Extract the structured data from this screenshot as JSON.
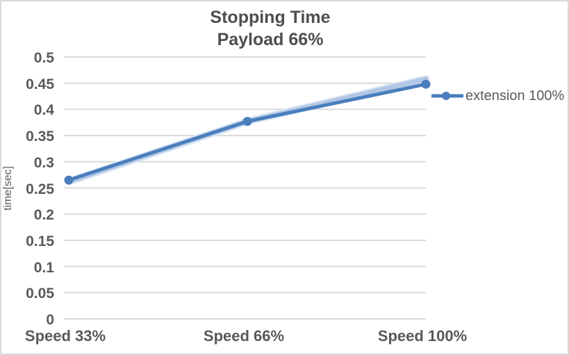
{
  "chart_data": {
    "type": "line",
    "title": "Stopping Time",
    "subtitle": "Payload 66%",
    "ylabel": "time[sec]",
    "xlabel": "",
    "categories": [
      "Speed 33%",
      "Speed 66%",
      "Speed 100%"
    ],
    "series": [
      {
        "name": "extension 100%",
        "values": [
          0.265,
          0.377,
          0.448
        ],
        "color": "#4A7EBD",
        "marker": "circle"
      }
    ],
    "shadow_band": {
      "values": [
        0.262,
        0.377,
        0.458
      ],
      "color": "#B1C7E5",
      "halo_color": "#DEE7F3"
    },
    "ylim": [
      0,
      0.5
    ],
    "ytick_step": 0.05,
    "grid": true,
    "gridline_color": "#D9D9D9",
    "legend_position": "right",
    "text_color": "#595959",
    "title_color": "#4E4E4E",
    "border_color": "#D9D9D9"
  }
}
